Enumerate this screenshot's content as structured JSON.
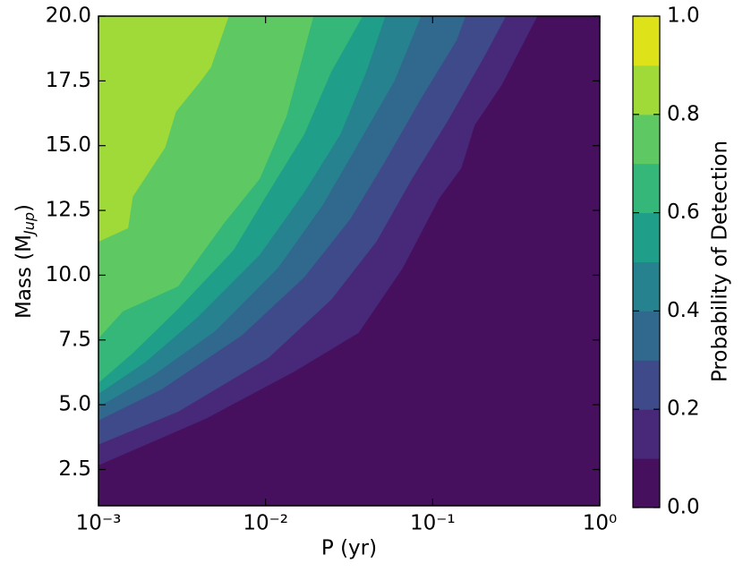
{
  "chart_data": {
    "type": "contourf",
    "xlabel": "P (yr)",
    "ylabel": {
      "text": "Mass (M",
      "sub": "Jup",
      "end": ")"
    },
    "colorbar_label": "Probability of Detection",
    "xscale": "log",
    "xlim": [
      0.001,
      1
    ],
    "xticks": [
      {
        "value": 0.001,
        "label": "10⁻³"
      },
      {
        "value": 0.01,
        "label": "10⁻²"
      },
      {
        "value": 0.1,
        "label": "10⁻¹"
      },
      {
        "value": 1,
        "label": "10⁰"
      }
    ],
    "ylim": [
      1.1,
      20
    ],
    "yticks": [
      2.5,
      {
        "value": 5,
        "label": "5.0"
      },
      7.5,
      {
        "value": 10,
        "label": "10.0"
      },
      12.5,
      {
        "value": 15,
        "label": "15.0"
      },
      17.5,
      {
        "value": 20,
        "label": "20.0"
      }
    ],
    "levels": [
      0,
      0.1,
      0.2,
      0.3,
      0.4,
      0.5,
      0.6,
      0.7,
      0.8,
      0.9,
      1.0
    ],
    "colors": [
      "#46105f",
      "#482878",
      "#3e4a89",
      "#31688e",
      "#26828e",
      "#1f9e89",
      "#35b779",
      "#5ec962",
      "#a0da39",
      "#dde318"
    ],
    "cticks": [
      {
        "value": 0,
        "label": "0.0"
      },
      0.2,
      0.4,
      0.6,
      0.8,
      {
        "value": 1,
        "label": "1.0"
      }
    ],
    "contours": [
      {
        "level": 0.1,
        "x": [
          0.001,
          0.0044,
          0.015,
          0.036,
          0.066,
          0.109,
          0.148,
          0.178,
          0.258,
          0.422
        ],
        "y": [
          2.67,
          4.47,
          6.3,
          7.78,
          10.27,
          12.96,
          14.13,
          15.79,
          17.34,
          20
        ]
      },
      {
        "level": 0.2,
        "x": [
          0.001,
          0.003,
          0.0104,
          0.0247,
          0.046,
          0.075,
          0.123,
          0.201,
          0.274
        ],
        "y": [
          3.47,
          4.74,
          6.81,
          9.06,
          11.3,
          13.72,
          15.96,
          18.38,
          20
        ]
      },
      {
        "level": 0.3,
        "x": [
          0.001,
          0.0024,
          0.0072,
          0.017,
          0.032,
          0.052,
          0.085,
          0.139,
          0.157
        ],
        "y": [
          4.4,
          5.61,
          7.68,
          9.92,
          12.16,
          14.41,
          16.82,
          19.07,
          20
        ]
      },
      {
        "level": 0.4,
        "x": [
          0.001,
          0.0021,
          0.005,
          0.0118,
          0.0218,
          0.036,
          0.059,
          0.085
        ],
        "y": [
          4.92,
          6.12,
          7.85,
          10.27,
          12.68,
          15.1,
          17.51,
          20
        ]
      },
      {
        "level": 0.5,
        "x": [
          0.001,
          0.0019,
          0.0039,
          0.0092,
          0.017,
          0.028,
          0.04,
          0.052
        ],
        "y": [
          5.43,
          6.64,
          8.37,
          10.78,
          13.2,
          15.44,
          17.86,
          20
        ]
      },
      {
        "level": 0.6,
        "x": [
          0.001,
          0.0016,
          0.003,
          0.0064,
          0.01,
          0.017,
          0.0247,
          0.038
        ],
        "y": [
          5.85,
          6.99,
          8.71,
          10.96,
          13.03,
          15.44,
          17.86,
          20
        ]
      },
      {
        "level": 0.7,
        "x": [
          0.001,
          0.0014,
          0.003,
          0.0056,
          0.0092,
          0.0133,
          0.0193
        ],
        "y": [
          7.57,
          8.61,
          9.58,
          11.99,
          13.72,
          16.13,
          20
        ]
      },
      {
        "level": 0.8,
        "x": [
          0.001,
          0.0015,
          0.0016,
          0.0025,
          0.0029,
          0.0041,
          0.0047,
          0.006
        ],
        "y": [
          11.3,
          11.82,
          13.03,
          14.93,
          16.31,
          17.51,
          18.03,
          20
        ]
      }
    ]
  }
}
